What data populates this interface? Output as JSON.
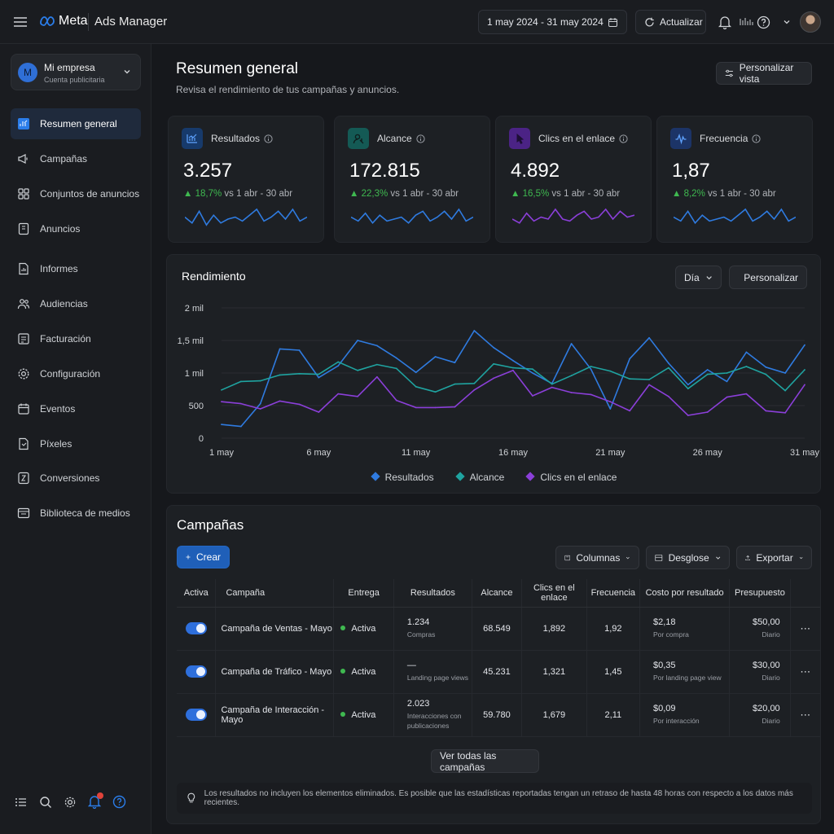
{
  "topbar": {
    "brand": "Meta",
    "app_title": "Ads Manager",
    "date_range": "1 may 2024 - 31 may 2024",
    "refresh_label": "Actualizar"
  },
  "account": {
    "name": "Mi empresa",
    "subtitle": "Cuenta publicitaria",
    "initial": "M"
  },
  "sidebar": {
    "items": [
      {
        "label": "Resumen general",
        "icon": "dashboard-icon",
        "active": true
      },
      {
        "label": "Campañas",
        "icon": "megaphone-icon"
      },
      {
        "label": "Conjuntos de anuncios",
        "icon": "grid-icon"
      },
      {
        "label": "Anuncios",
        "icon": "ad-icon"
      },
      {
        "label": "Informes",
        "icon": "report-icon"
      },
      {
        "label": "Audiencias",
        "icon": "people-icon"
      },
      {
        "label": "Facturación",
        "icon": "billing-icon"
      },
      {
        "label": "Configuración",
        "icon": "gear-icon"
      },
      {
        "label": "Eventos",
        "icon": "events-icon"
      },
      {
        "label": "Píxeles",
        "icon": "pixel-icon"
      },
      {
        "label": "Conversiones",
        "icon": "conversion-icon"
      },
      {
        "label": "Biblioteca de medios",
        "icon": "media-icon"
      }
    ]
  },
  "overview": {
    "title": "Resumen general",
    "subtitle": "Revisa el rendimiento de tus campañas y anuncios.",
    "customize_label": "Personalizar vista"
  },
  "kpis": [
    {
      "label": "Resultados",
      "value": "3.257",
      "delta": "18,7%",
      "compare": "vs 1 abr - 30 abr",
      "color": "#2f7be0",
      "icon": "chart-icon"
    },
    {
      "label": "Alcance",
      "value": "172.815",
      "delta": "22,3%",
      "compare": "vs 1 abr - 30 abr",
      "color": "#2f7be0",
      "icon": "reach-icon"
    },
    {
      "label": "Clics en el enlace",
      "value": "4.892",
      "delta": "16,5%",
      "compare": "vs 1 abr - 30 abr",
      "color": "#8b3fd9",
      "icon": "click-icon"
    },
    {
      "label": "Frecuencia",
      "value": "1,87",
      "delta": "8,2%",
      "compare": "vs 1 abr - 30 abr",
      "color": "#2f7be0",
      "icon": "frequency-icon"
    }
  ],
  "performance": {
    "title": "Rendimiento",
    "granularity": "Día",
    "customize_label": "Personalizar"
  },
  "chart_data": {
    "type": "line",
    "x": [
      "1 may",
      "2 may",
      "3 may",
      "4 may",
      "5 may",
      "6 may",
      "7 may",
      "8 may",
      "9 may",
      "10 may",
      "11 may",
      "12 may",
      "13 may",
      "14 may",
      "15 may",
      "16 may",
      "17 may",
      "18 may",
      "19 may",
      "20 may",
      "21 may",
      "22 may",
      "23 may",
      "24 may",
      "25 may",
      "26 may",
      "27 may",
      "28 may",
      "29 may",
      "30 may",
      "31 may"
    ],
    "xticks": [
      "1 may",
      "6 may",
      "11 may",
      "16 may",
      "21 may",
      "26 may",
      "31 may"
    ],
    "yticks": [
      "0",
      "500",
      "1 mil",
      "1,5 mil",
      "2 mil"
    ],
    "ylim": [
      0,
      2000
    ],
    "series": [
      {
        "name": "Resultados",
        "color": "#2f7be0",
        "values": [
          210,
          180,
          530,
          1370,
          1350,
          930,
          1110,
          1500,
          1420,
          1230,
          1010,
          1250,
          1160,
          1650,
          1390,
          1190,
          1000,
          840,
          1450,
          1060,
          450,
          1220,
          1540,
          1150,
          820,
          1050,
          870,
          1320,
          1090,
          1000,
          1430
        ]
      },
      {
        "name": "Alcance",
        "color": "#1fa3a0",
        "values": [
          740,
          870,
          880,
          970,
          990,
          980,
          1170,
          1040,
          1130,
          1070,
          790,
          710,
          830,
          840,
          1140,
          1080,
          1060,
          830,
          960,
          1100,
          1030,
          910,
          900,
          1080,
          760,
          980,
          1000,
          1100,
          980,
          730,
          1050
        ]
      },
      {
        "name": "Clics en el enlace",
        "color": "#8b3fd9",
        "values": [
          560,
          530,
          450,
          570,
          520,
          400,
          680,
          640,
          940,
          580,
          470,
          470,
          480,
          740,
          920,
          1040,
          650,
          780,
          700,
          670,
          560,
          420,
          820,
          640,
          350,
          400,
          630,
          680,
          420,
          390,
          820
        ]
      }
    ]
  },
  "campaigns": {
    "title": "Campañas",
    "create_label": "Crear",
    "columns_label": "Columnas",
    "breakdown_label": "Desglose",
    "export_label": "Exportar",
    "headers": [
      "Activa",
      "Campaña",
      "Entrega",
      "Resultados",
      "Alcance",
      "Clics en el enlace",
      "Frecuencia",
      "Costo por resultado",
      "Presupuesto"
    ],
    "rows": [
      {
        "name": "Campaña de Ventas - Mayo",
        "status": "Activa",
        "results": "1.234",
        "results_type": "Compras",
        "reach": "68.549",
        "clicks": "1,892",
        "frequency": "1,92",
        "cost": "$2,18",
        "cost_type": "Por compra",
        "budget": "$50,00",
        "budget_type": "Diario"
      },
      {
        "name": "Campaña de Tráfico - Mayo",
        "status": "Activa",
        "results": "—",
        "results_type": "Landing page views",
        "reach": "45.231",
        "clicks": "1,321",
        "frequency": "1,45",
        "cost": "$0,35",
        "cost_type": "Por landing page view",
        "budget": "$30,00",
        "budget_type": "Diario"
      },
      {
        "name": "Campaña de Interacción - Mayo",
        "status": "Activa",
        "results": "2.023",
        "results_type": "Interacciones con publicaciones",
        "reach": "59.780",
        "clicks": "1,679",
        "frequency": "2,11",
        "cost": "$0,09",
        "cost_type": "Por interacción",
        "budget": "$20,00",
        "budget_type": "Diario"
      }
    ],
    "view_all_label": "Ver todas las campañas",
    "footnote": "Los resultados no incluyen los elementos eliminados. Es posible que las estadísticas reportadas tengan un retraso de hasta 48 horas con respecto a los datos más recientes."
  }
}
